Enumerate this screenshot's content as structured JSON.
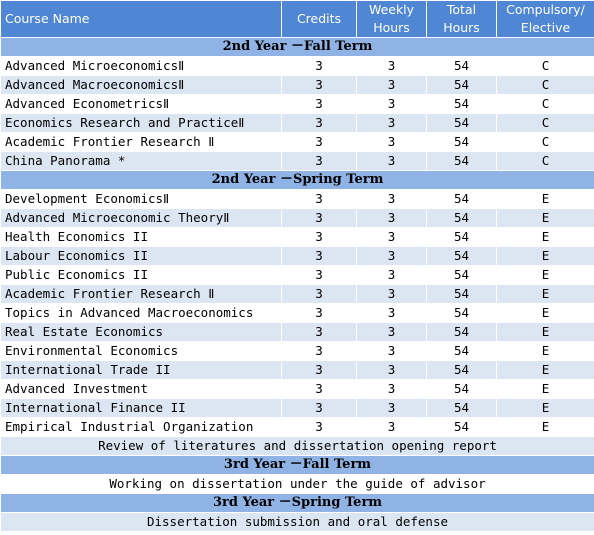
{
  "header": {
    "course_name": "Course Name",
    "credits": "Credits",
    "weekly_hours_1": "Weekly",
    "weekly_hours_2": "Hours",
    "total_hours_1": "Total",
    "total_hours_2": "Hours",
    "compulsory_1": "Compulsory/",
    "compulsory_2": "Elective"
  },
  "sections": [
    {
      "term": "2nd Year  －Fall Term",
      "courses": [
        {
          "name": "Advanced MicroeconomicsⅡ",
          "credits": "3",
          "weekly": "3",
          "total": "54",
          "type": "C"
        },
        {
          "name": "Advanced MacroeconomicsⅡ",
          "credits": "3",
          "weekly": "3",
          "total": "54",
          "type": "C"
        },
        {
          "name": "Advanced EconometricsⅡ",
          "credits": "3",
          "weekly": "3",
          "total": "54",
          "type": "C"
        },
        {
          "name": "Economics Research and PracticeⅡ",
          "credits": "3",
          "weekly": "3",
          "total": "54",
          "type": "C"
        },
        {
          "name": "Academic Frontier Research Ⅱ",
          "credits": "3",
          "weekly": "3",
          "total": "54",
          "type": "C"
        },
        {
          "name": "China Panorama *",
          "credits": "3",
          "weekly": "3",
          "total": "54",
          "type": "C"
        }
      ]
    },
    {
      "term": "2nd Year  －Spring Term",
      "courses": [
        {
          "name": "Development EconomicsⅡ",
          "credits": "3",
          "weekly": "3",
          "total": "54",
          "type": "E"
        },
        {
          "name": "Advanced Microeconomic TheoryⅡ",
          "credits": "3",
          "weekly": "3",
          "total": "54",
          "type": "E"
        },
        {
          "name": "Health Economics II",
          "credits": "3",
          "weekly": "3",
          "total": "54",
          "type": "E"
        },
        {
          "name": "Labour Economics II",
          "credits": "3",
          "weekly": "3",
          "total": "54",
          "type": "E"
        },
        {
          "name": "Public Economics II",
          "credits": "3",
          "weekly": "3",
          "total": "54",
          "type": "E"
        },
        {
          "name": "Academic Frontier Research Ⅱ",
          "credits": "3",
          "weekly": "3",
          "total": "54",
          "type": "E"
        },
        {
          "name": "Topics in Advanced Macroeconomics",
          "credits": "3",
          "weekly": "3",
          "total": "54",
          "type": "E"
        },
        {
          "name": "Real Estate Economics",
          "credits": "3",
          "weekly": "3",
          "total": "54",
          "type": "E"
        },
        {
          "name": "Environmental Economics",
          "credits": "3",
          "weekly": "3",
          "total": "54",
          "type": "E"
        },
        {
          "name": "International Trade II",
          "credits": "3",
          "weekly": "3",
          "total": "54",
          "type": "E"
        },
        {
          "name": "Advanced Investment",
          "credits": "3",
          "weekly": "3",
          "total": "54",
          "type": "E"
        },
        {
          "name": "International Finance II",
          "credits": "3",
          "weekly": "3",
          "total": "54",
          "type": "E"
        },
        {
          "name": "Empirical Industrial Organization",
          "credits": "3",
          "weekly": "3",
          "total": "54",
          "type": "E"
        }
      ]
    }
  ],
  "notes": {
    "review": "Review of literatures and dissertation opening report",
    "term_3_fall": "3rd Year  －Fall Term",
    "working": "Working on dissertation under the guide of advisor",
    "term_3_spring": "3rd Year  －Spring Term",
    "submission": "Dissertation submission and oral defense"
  },
  "colors": {
    "header_bg": "#4f87d4",
    "term_bg": "#90b3e5",
    "stripe_bg": "#dce6f2"
  }
}
